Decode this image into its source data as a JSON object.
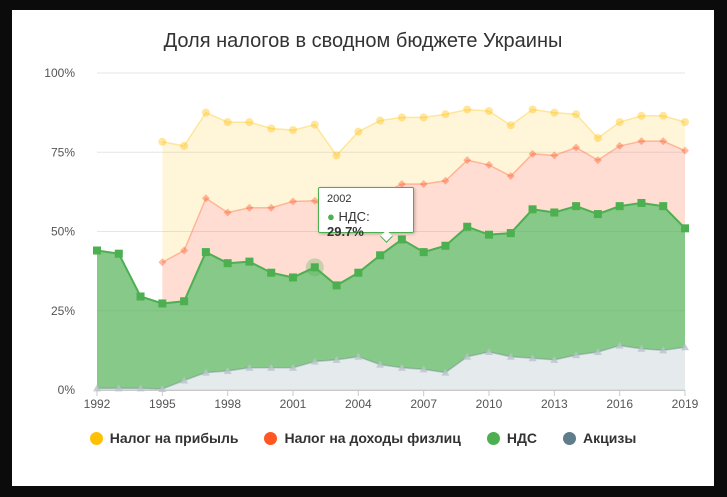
{
  "chart_data": {
    "type": "area",
    "title": "Доля налогов в сводном бюджете Украины",
    "xlabel": "",
    "ylabel": "",
    "x": [
      1992,
      1993,
      1994,
      1995,
      1996,
      1997,
      1998,
      1999,
      2000,
      2001,
      2002,
      2003,
      2004,
      2005,
      2006,
      2007,
      2008,
      2009,
      2010,
      2011,
      2012,
      2013,
      2014,
      2015,
      2016,
      2017,
      2018,
      2019
    ],
    "xticks": [
      "1992",
      "1995",
      "1998",
      "2001",
      "2004",
      "2007",
      "2010",
      "2013",
      "2016",
      "2019"
    ],
    "yticks": [
      "0%",
      "25%",
      "50%",
      "75%",
      "100%"
    ],
    "ylim": [
      0,
      100
    ],
    "stacking": "cumulative",
    "series": [
      {
        "name": "Акцизы",
        "color": "#607d8b",
        "values": [
          0.5,
          0.5,
          0.5,
          0.3,
          3,
          5.5,
          6,
          7,
          7,
          7,
          9,
          9.5,
          10.5,
          8,
          7,
          6.5,
          5.5,
          10.5,
          12,
          10.5,
          10,
          9.5,
          11,
          12,
          14,
          13,
          12.5,
          13.5
        ]
      },
      {
        "name": "НДС",
        "color": "#4caf50",
        "values": [
          43.5,
          42.5,
          29,
          27,
          25,
          38,
          34,
          33.5,
          30,
          28.5,
          29.7,
          23.5,
          26.5,
          34.5,
          40.5,
          37,
          40,
          41,
          37,
          39,
          47,
          46.5,
          47,
          43.5,
          44,
          46,
          45.5,
          37.5
        ]
      },
      {
        "name": "Налог на доходы физлиц",
        "color": "#ff5722",
        "values": [
          null,
          null,
          null,
          13,
          16,
          17,
          16,
          17,
          20.5,
          24,
          21,
          22,
          23,
          19,
          17.5,
          21.5,
          20.5,
          21,
          22,
          18,
          17.5,
          18,
          18.5,
          17,
          19,
          19.5,
          20.5,
          24.5
        ]
      },
      {
        "name": "Налог на прибыль",
        "color": "#ffc107",
        "values": [
          null,
          null,
          null,
          38,
          33,
          27,
          28.5,
          27,
          25,
          22.5,
          24,
          19,
          21.5,
          23.5,
          21,
          21,
          21,
          16,
          17,
          16,
          14,
          13.5,
          10.5,
          7,
          7.5,
          8,
          8,
          9
        ]
      }
    ],
    "legend_position": "bottom",
    "tooltip": {
      "year": "2002",
      "series": "НДС",
      "label": "НДС:",
      "value": "29.7%"
    }
  }
}
